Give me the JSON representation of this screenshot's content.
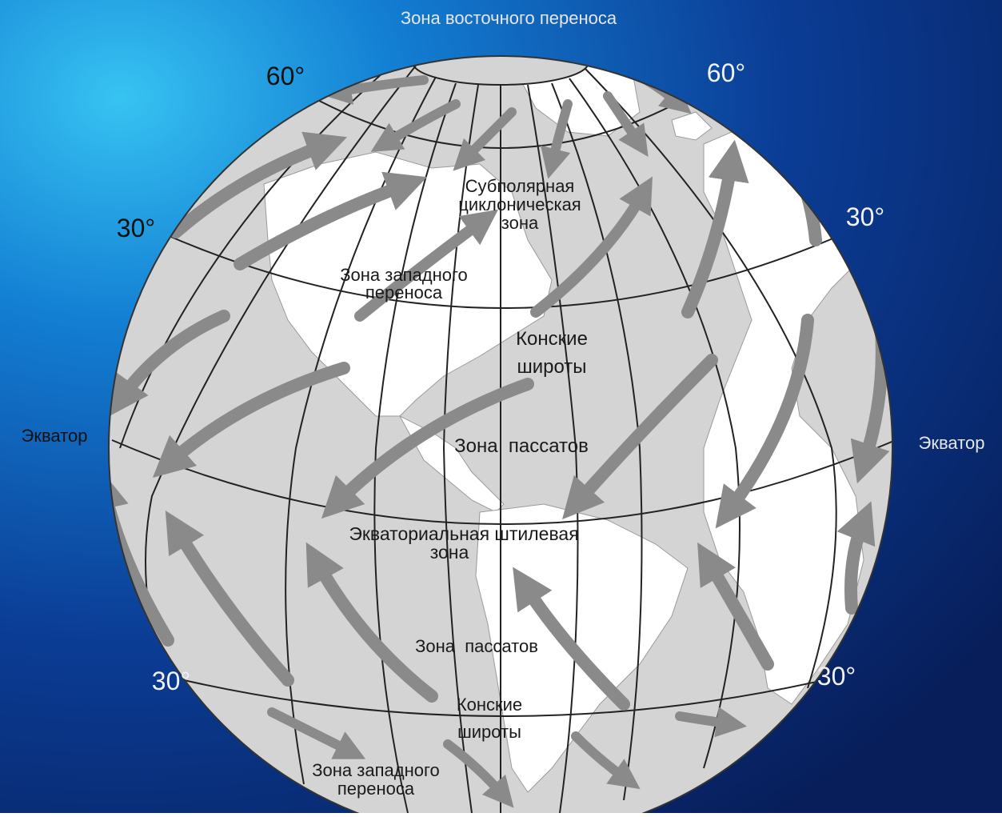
{
  "labels": {
    "polar_easterlies": "Зона восточного переноса",
    "lat60_left": "60°",
    "lat60_right": "60°",
    "lat30_left_north": "30°",
    "lat30_right_north": "30°",
    "lat30_left_south": "30°",
    "lat30_right_south": "30°",
    "subpolar_line1": "Субполярная",
    "subpolar_line2": "циклоническая",
    "subpolar_line3": "зона",
    "westerlies_north_line1": "Зона западного",
    "westerlies_north_line2": "переноса",
    "horse_north_line1": "Конские",
    "horse_north_line2": "широты",
    "trades_north": "Зона  пассатов",
    "equator_left": "Экватор",
    "equator_right": "Экватор",
    "doldrums_line1": "Экваториальная штилевая",
    "doldrums_line2": "зона",
    "trades_south": "Зона  пассатов",
    "horse_south_line1": "Конские",
    "horse_south_line2": "широты",
    "westerlies_south_line1": "Зона западного",
    "westerlies_south_line2": "переноса"
  },
  "colors": {
    "ocean": "#d4d4d4",
    "land": "#ffffff",
    "grid": "#222222",
    "arrow": "#8a8a8a",
    "text": "#1a1a1a",
    "outer_text": "#dddddd"
  }
}
